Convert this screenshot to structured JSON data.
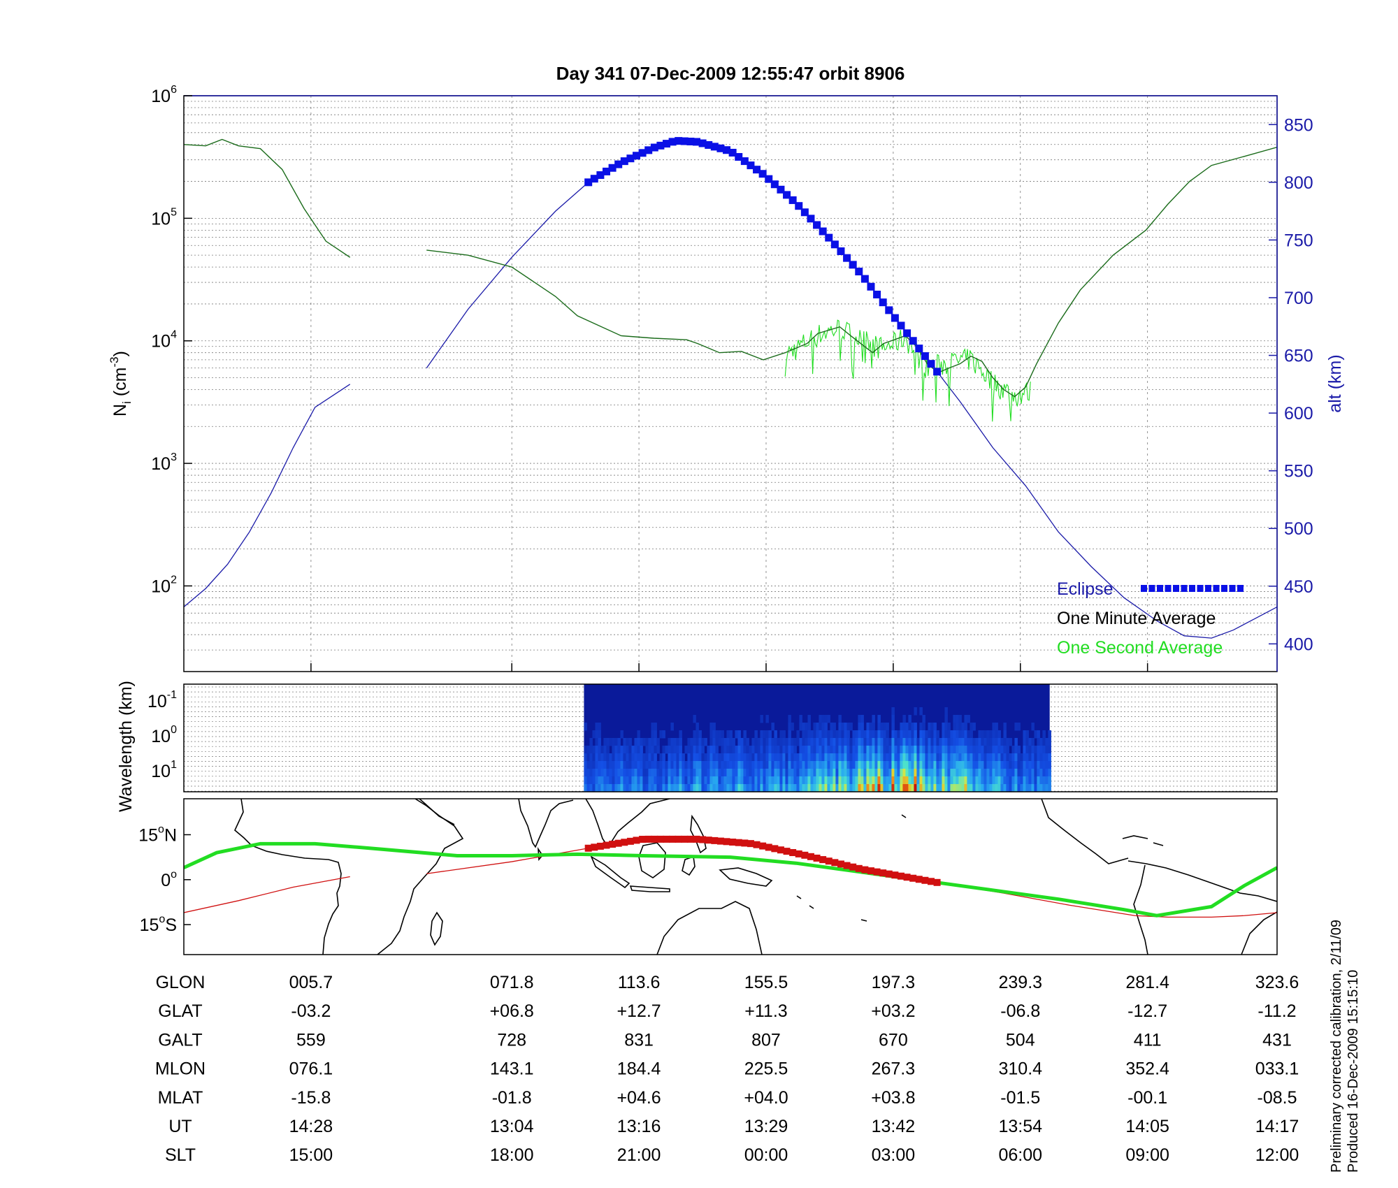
{
  "title": "Day 341  07-Dec-2009 12:55:47   orbit 8906",
  "colors": {
    "density_line": "#1a6b1a",
    "one_second": "#22dd22",
    "altitude": "#1a1aa8",
    "eclipse": "#0a10e6",
    "track_red": "#d01010",
    "track_green": "#22dd22",
    "grid": "#777777"
  },
  "chart_data": [
    {
      "type": "line",
      "name": "density-panel",
      "title": "Day 341  07-Dec-2009 12:55:47   orbit 8906",
      "ylabel_left": "N",
      "ylabel_left_sub": "i",
      "ylabel_left_unit": " (cm",
      "ylabel_left_sup": "-3",
      "ylabel_left_end": ")",
      "ylabel_right": "alt (km)",
      "yscale_left": "log",
      "ylim_left": [
        20,
        1000000
      ],
      "left_ticks": [
        {
          "base": "10",
          "exp": "2",
          "value": 100
        },
        {
          "base": "10",
          "exp": "3",
          "value": 1000
        },
        {
          "base": "10",
          "exp": "4",
          "value": 10000
        },
        {
          "base": "10",
          "exp": "5",
          "value": 100000
        },
        {
          "base": "10",
          "exp": "6",
          "value": 1000000
        }
      ],
      "ylim_right": [
        376,
        875
      ],
      "right_ticks": [
        "400",
        "450",
        "500",
        "550",
        "600",
        "650",
        "700",
        "750",
        "800",
        "850"
      ],
      "xlim": [
        0,
        1
      ],
      "x_grid": [
        0.1163,
        0.3,
        0.4163,
        0.5326,
        0.6489,
        0.7652,
        0.8815
      ],
      "grid": true,
      "legend_position": "bottom-right",
      "legend": [
        "Eclipse",
        "One Minute Average",
        "One Second Average"
      ],
      "series": [
        {
          "name": "One Minute Average",
          "segments": [
            [
              [
                0,
                400000
              ],
              [
                0.02,
                390000
              ],
              [
                0.035,
                440000
              ],
              [
                0.05,
                390000
              ],
              [
                0.07,
                370000
              ],
              [
                0.09,
                250000
              ],
              [
                0.11,
                120000
              ],
              [
                0.13,
                65000
              ],
              [
                0.152,
                48000
              ]
            ],
            [
              [
                0.222,
                55000
              ],
              [
                0.26,
                50000
              ],
              [
                0.3,
                40000
              ],
              [
                0.34,
                23000
              ],
              [
                0.36,
                16000
              ],
              [
                0.4,
                11000
              ],
              [
                0.43,
                10500
              ],
              [
                0.46,
                10200
              ],
              [
                0.47,
                9500
              ],
              [
                0.49,
                8000
              ],
              [
                0.51,
                8200
              ],
              [
                0.53,
                7000
              ],
              [
                0.55,
                8000
              ],
              [
                0.57,
                9500
              ],
              [
                0.58,
                11500
              ],
              [
                0.6,
                13000
              ],
              [
                0.61,
                11000
              ],
              [
                0.63,
                8000
              ],
              [
                0.64,
                9500
              ],
              [
                0.66,
                11000
              ],
              [
                0.67,
                9000
              ],
              [
                0.68,
                6500
              ],
              [
                0.69,
                5500
              ],
              [
                0.7,
                6000
              ],
              [
                0.71,
                6500
              ],
              [
                0.72,
                7500
              ],
              [
                0.73,
                6800
              ],
              [
                0.74,
                5000
              ],
              [
                0.75,
                4000
              ],
              [
                0.76,
                3500
              ],
              [
                0.77,
                4200
              ],
              [
                0.78,
                6500
              ],
              [
                0.8,
                14000
              ],
              [
                0.82,
                26000
              ],
              [
                0.85,
                50000
              ],
              [
                0.88,
                80000
              ],
              [
                0.9,
                130000
              ],
              [
                0.92,
                200000
              ],
              [
                0.94,
                270000
              ],
              [
                0.97,
                320000
              ],
              [
                1.0,
                380000
              ]
            ]
          ]
        },
        {
          "name": "One Second Average",
          "xrange": [
            0.55,
            0.775
          ],
          "anchors": [
            [
              0.55,
              7500
            ],
            [
              0.58,
              11000
            ],
            [
              0.6,
              12500
            ],
            [
              0.62,
              10000
            ],
            [
              0.64,
              8500
            ],
            [
              0.66,
              10500
            ],
            [
              0.68,
              6000
            ],
            [
              0.7,
              6500
            ],
            [
              0.72,
              7000
            ],
            [
              0.74,
              4500
            ],
            [
              0.76,
              3500
            ],
            [
              0.775,
              3800
            ]
          ]
        },
        {
          "name": "alt",
          "axis": "right",
          "segments": [
            [
              [
                0,
                432
              ],
              [
                0.02,
                448
              ],
              [
                0.04,
                469
              ],
              [
                0.06,
                497
              ],
              [
                0.08,
                531
              ],
              [
                0.1,
                570
              ],
              [
                0.12,
                605
              ],
              [
                0.152,
                625
              ]
            ],
            [
              [
                0.222,
                639
              ],
              [
                0.26,
                690
              ],
              [
                0.3,
                735
              ],
              [
                0.34,
                775
              ],
              [
                0.37,
                800
              ],
              [
                0.4,
                817
              ],
              [
                0.43,
                830
              ],
              [
                0.45,
                836
              ],
              [
                0.47,
                835
              ],
              [
                0.5,
                827
              ],
              [
                0.53,
                807
              ],
              [
                0.56,
                782
              ],
              [
                0.59,
                752
              ],
              [
                0.62,
                720
              ],
              [
                0.65,
                683
              ],
              [
                0.68,
                647
              ],
              [
                0.71,
                610
              ],
              [
                0.74,
                570
              ],
              [
                0.77,
                537
              ],
              [
                0.8,
                497
              ],
              [
                0.83,
                467
              ],
              [
                0.86,
                440
              ],
              [
                0.89,
                420
              ],
              [
                0.915,
                407
              ],
              [
                0.94,
                405
              ],
              [
                0.96,
                412
              ],
              [
                0.98,
                422
              ],
              [
                1.0,
                432
              ]
            ]
          ]
        },
        {
          "name": "Eclipse",
          "axis": "right",
          "xrange": [
            0.37,
            0.69
          ]
        }
      ]
    },
    {
      "type": "heatmap",
      "name": "wavelength-panel",
      "ylabel": "Wavelength (km)",
      "y_ticks": [
        {
          "base": "10",
          "exp": "-1"
        },
        {
          "base": "10",
          "exp": "0"
        },
        {
          "base": "10",
          "exp": "1"
        }
      ],
      "data_xrange": [
        0.366,
        0.792
      ],
      "grid": true
    },
    {
      "type": "line",
      "name": "map-panel",
      "y_ticks": [
        {
          "deg": "15",
          "hemi": "N",
          "lat": 15
        },
        {
          "deg": "0",
          "hemi": "",
          "lat": 0
        },
        {
          "deg": "15",
          "hemi": "S",
          "lat": -15
        }
      ],
      "ylim": [
        -25,
        27
      ],
      "series": [
        {
          "name": "footprint-green",
          "points": [
            [
              0,
              4
            ],
            [
              0.03,
              9
            ],
            [
              0.07,
              12
            ],
            [
              0.12,
              12
            ],
            [
              0.17,
              10.5
            ],
            [
              0.25,
              8
            ],
            [
              0.3,
              8
            ],
            [
              0.36,
              8.5
            ],
            [
              0.42,
              8
            ],
            [
              0.5,
              7.5
            ],
            [
              0.56,
              5.5
            ],
            [
              0.62,
              2.5
            ],
            [
              0.68,
              -0.5
            ],
            [
              0.74,
              -3.5
            ],
            [
              0.8,
              -6.5
            ],
            [
              0.86,
              -10
            ],
            [
              0.89,
              -12
            ],
            [
              0.94,
              -9
            ],
            [
              0.97,
              -2
            ],
            [
              1.0,
              4
            ]
          ]
        },
        {
          "name": "footprint-red",
          "segments": [
            [
              [
                0,
                -11
              ],
              [
                0.05,
                -7
              ],
              [
                0.1,
                -2.5
              ],
              [
                0.152,
                1
              ]
            ],
            [
              [
                0.222,
                2
              ],
              [
                0.3,
                6
              ],
              [
                0.37,
                10.5
              ],
              [
                0.42,
                13.5
              ],
              [
                0.47,
                13.5
              ],
              [
                0.52,
                12
              ],
              [
                0.57,
                8
              ],
              [
                0.62,
                3.5
              ],
              [
                0.69,
                -1
              ],
              [
                0.75,
                -4.5
              ],
              [
                0.81,
                -8.5
              ],
              [
                0.87,
                -12
              ],
              [
                0.9,
                -12.5
              ],
              [
                0.94,
                -12.5
              ],
              [
                0.97,
                -12
              ],
              [
                1.0,
                -11
              ]
            ]
          ]
        },
        {
          "name": "eclipse-track",
          "xrange": [
            0.37,
            0.69
          ]
        }
      ]
    }
  ],
  "table": {
    "columns_x": [
      0.1163,
      0.3,
      0.4163,
      0.5326,
      0.6489,
      0.7652,
      0.8815,
      1.0
    ],
    "rows": [
      {
        "label": "GLON",
        "values": [
          "005.7",
          "071.8",
          "113.6",
          "155.5",
          "197.3",
          "239.3",
          "281.4",
          "323.6"
        ]
      },
      {
        "label": "GLAT",
        "values": [
          "-03.2",
          "+06.8",
          "+12.7",
          "+11.3",
          "+03.2",
          "-06.8",
          "-12.7",
          "-11.2"
        ]
      },
      {
        "label": "GALT",
        "values": [
          "559",
          "728",
          "831",
          "807",
          "670",
          "504",
          "411",
          "431"
        ]
      },
      {
        "label": "MLON",
        "values": [
          "076.1",
          "143.1",
          "184.4",
          "225.5",
          "267.3",
          "310.4",
          "352.4",
          "033.1"
        ]
      },
      {
        "label": "MLAT",
        "values": [
          "-15.8",
          "-01.8",
          "+04.6",
          "+04.0",
          "+03.8",
          "-01.5",
          "-00.1",
          "-08.5"
        ]
      },
      {
        "label": "UT",
        "values": [
          "14:28",
          "13:04",
          "13:16",
          "13:29",
          "13:42",
          "13:54",
          "14:05",
          "14:17"
        ]
      },
      {
        "label": "SLT",
        "values": [
          "15:00",
          "18:00",
          "21:00",
          "00:00",
          "03:00",
          "06:00",
          "09:00",
          "12:00"
        ]
      }
    ]
  },
  "footnote": {
    "line1": "Preliminary corrected calibration, 2/11/09",
    "line2": "Produced 16-Dec-2009 15:15:10"
  }
}
